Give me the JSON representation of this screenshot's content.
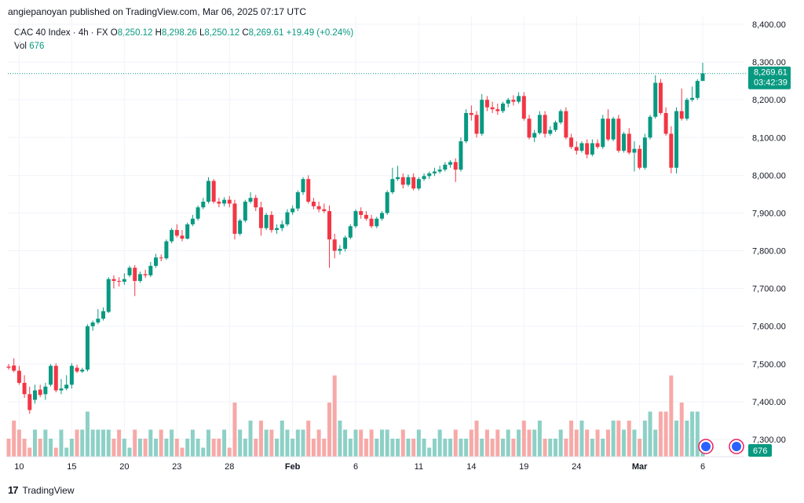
{
  "header": {
    "text": "angiepanoyan published on TradingView.com, Mar 06, 2025 07:17 UTC"
  },
  "legend": {
    "symbol": "CAC 40 Index · 4h · FX",
    "o_label": "O",
    "o": "8,250.12",
    "h_label": "H",
    "h": "8,298.26",
    "l_label": "L",
    "l": "8,250.12",
    "c_label": "C",
    "c": "8,269.61",
    "change": "+19.49 (+0.24%)",
    "vol_label": "Vol",
    "vol": "676"
  },
  "footer": {
    "brand": "TradingView",
    "logo": "17"
  },
  "colors": {
    "up": "#089981",
    "down": "#f23645",
    "vol_up": "#8dd0c6",
    "vol_down": "#f7a9a7",
    "grid": "#f0f3fa"
  },
  "chart_data": {
    "type": "candlestick",
    "y_ticks": [
      "8,400.00",
      "8,300.00",
      "8,200.00",
      "8,100.00",
      "8,000.00",
      "7,900.00",
      "7,800.00",
      "7,700.00",
      "7,600.00",
      "7,500.00",
      "7,400.00",
      "7,300.00"
    ],
    "y_range": [
      7275,
      8425
    ],
    "x_ticks": [
      "10",
      "15",
      "20",
      "23",
      "28",
      "Feb",
      "6",
      "11",
      "14",
      "19",
      "24",
      "Mar",
      "6"
    ],
    "last_price": "8,269.61",
    "countdown": "03:42:39",
    "vol_label": "676",
    "candles": [
      {
        "o": 7493,
        "h": 7500,
        "l": 7485,
        "c": 7490,
        "v": 2
      },
      {
        "o": 7496,
        "h": 7515,
        "l": 7478,
        "c": 7482,
        "v": 4
      },
      {
        "o": 7482,
        "h": 7495,
        "l": 7445,
        "c": 7450,
        "v": 3
      },
      {
        "o": 7450,
        "h": 7470,
        "l": 7410,
        "c": 7420,
        "v": 2
      },
      {
        "o": 7420,
        "h": 7440,
        "l": 7368,
        "c": 7378,
        "v": 1
      },
      {
        "o": 7405,
        "h": 7445,
        "l": 7395,
        "c": 7430,
        "v": 3
      },
      {
        "o": 7432,
        "h": 7445,
        "l": 7412,
        "c": 7418,
        "v": 2
      },
      {
        "o": 7420,
        "h": 7450,
        "l": 7405,
        "c": 7440,
        "v": 3
      },
      {
        "o": 7445,
        "h": 7500,
        "l": 7440,
        "c": 7495,
        "v": 2
      },
      {
        "o": 7495,
        "h": 7502,
        "l": 7425,
        "c": 7430,
        "v": 1
      },
      {
        "o": 7430,
        "h": 7460,
        "l": 7420,
        "c": 7435,
        "v": 3
      },
      {
        "o": 7435,
        "h": 7470,
        "l": 7430,
        "c": 7445,
        "v": 1
      },
      {
        "o": 7445,
        "h": 7502,
        "l": 7435,
        "c": 7495,
        "v": 2
      },
      {
        "o": 7490,
        "h": 7498,
        "l": 7476,
        "c": 7480,
        "v": 3
      },
      {
        "o": 7480,
        "h": 7490,
        "l": 7476,
        "c": 7485,
        "v": 3
      },
      {
        "o": 7485,
        "h": 7605,
        "l": 7480,
        "c": 7600,
        "v": 5
      },
      {
        "o": 7600,
        "h": 7615,
        "l": 7588,
        "c": 7610,
        "v": 3
      },
      {
        "o": 7610,
        "h": 7645,
        "l": 7605,
        "c": 7620,
        "v": 3
      },
      {
        "o": 7620,
        "h": 7650,
        "l": 7615,
        "c": 7640,
        "v": 3
      },
      {
        "o": 7638,
        "h": 7730,
        "l": 7635,
        "c": 7725,
        "v": 3
      },
      {
        "o": 7725,
        "h": 7735,
        "l": 7700,
        "c": 7720,
        "v": 2
      },
      {
        "o": 7720,
        "h": 7730,
        "l": 7705,
        "c": 7718,
        "v": 3
      },
      {
        "o": 7718,
        "h": 7740,
        "l": 7710,
        "c": 7725,
        "v": 2
      },
      {
        "o": 7735,
        "h": 7760,
        "l": 7730,
        "c": 7755,
        "v": 1
      },
      {
        "o": 7755,
        "h": 7762,
        "l": 7680,
        "c": 7720,
        "v": 3
      },
      {
        "o": 7720,
        "h": 7745,
        "l": 7715,
        "c": 7738,
        "v": 2
      },
      {
        "o": 7738,
        "h": 7750,
        "l": 7728,
        "c": 7735,
        "v": 2
      },
      {
        "o": 7735,
        "h": 7770,
        "l": 7730,
        "c": 7760,
        "v": 3
      },
      {
        "o": 7760,
        "h": 7792,
        "l": 7755,
        "c": 7782,
        "v": 2
      },
      {
        "o": 7782,
        "h": 7790,
        "l": 7772,
        "c": 7780,
        "v": 3
      },
      {
        "o": 7780,
        "h": 7830,
        "l": 7776,
        "c": 7825,
        "v": 2
      },
      {
        "o": 7825,
        "h": 7860,
        "l": 7820,
        "c": 7855,
        "v": 3
      },
      {
        "o": 7855,
        "h": 7870,
        "l": 7835,
        "c": 7840,
        "v": 2
      },
      {
        "o": 7840,
        "h": 7855,
        "l": 7825,
        "c": 7832,
        "v": 1
      },
      {
        "o": 7832,
        "h": 7875,
        "l": 7830,
        "c": 7870,
        "v": 2
      },
      {
        "o": 7870,
        "h": 7895,
        "l": 7865,
        "c": 7885,
        "v": 3
      },
      {
        "o": 7885,
        "h": 7920,
        "l": 7880,
        "c": 7915,
        "v": 2
      },
      {
        "o": 7915,
        "h": 7940,
        "l": 7910,
        "c": 7930,
        "v": 1
      },
      {
        "o": 7930,
        "h": 7995,
        "l": 7925,
        "c": 7985,
        "v": 3
      },
      {
        "o": 7985,
        "h": 7990,
        "l": 7925,
        "c": 7930,
        "v": 2
      },
      {
        "o": 7930,
        "h": 7940,
        "l": 7915,
        "c": 7925,
        "v": 2
      },
      {
        "o": 7925,
        "h": 7942,
        "l": 7918,
        "c": 7935,
        "v": 3
      },
      {
        "o": 7935,
        "h": 7945,
        "l": 7915,
        "c": 7925,
        "v": 1
      },
      {
        "o": 7925,
        "h": 7935,
        "l": 7830,
        "c": 7845,
        "v": 6
      },
      {
        "o": 7845,
        "h": 7885,
        "l": 7840,
        "c": 7880,
        "v": 3
      },
      {
        "o": 7880,
        "h": 7935,
        "l": 7875,
        "c": 7930,
        "v": 2
      },
      {
        "o": 7930,
        "h": 7955,
        "l": 7925,
        "c": 7940,
        "v": 4
      },
      {
        "o": 7940,
        "h": 7948,
        "l": 7905,
        "c": 7915,
        "v": 2
      },
      {
        "o": 7915,
        "h": 7930,
        "l": 7840,
        "c": 7860,
        "v": 4
      },
      {
        "o": 7860,
        "h": 7900,
        "l": 7855,
        "c": 7895,
        "v": 3
      },
      {
        "o": 7895,
        "h": 7905,
        "l": 7848,
        "c": 7855,
        "v": 3
      },
      {
        "o": 7855,
        "h": 7870,
        "l": 7845,
        "c": 7860,
        "v": 2
      },
      {
        "o": 7860,
        "h": 7880,
        "l": 7852,
        "c": 7870,
        "v": 4
      },
      {
        "o": 7870,
        "h": 7910,
        "l": 7865,
        "c": 7902,
        "v": 3
      },
      {
        "o": 7902,
        "h": 7920,
        "l": 7895,
        "c": 7912,
        "v": 2
      },
      {
        "o": 7912,
        "h": 7960,
        "l": 7905,
        "c": 7955,
        "v": 3
      },
      {
        "o": 7955,
        "h": 7995,
        "l": 7948,
        "c": 7990,
        "v": 3
      },
      {
        "o": 7990,
        "h": 8000,
        "l": 7925,
        "c": 7930,
        "v": 4
      },
      {
        "o": 7930,
        "h": 7940,
        "l": 7910,
        "c": 7918,
        "v": 2
      },
      {
        "o": 7918,
        "h": 7930,
        "l": 7902,
        "c": 7910,
        "v": 3
      },
      {
        "o": 7910,
        "h": 7925,
        "l": 7900,
        "c": 7905,
        "v": 2
      },
      {
        "o": 7905,
        "h": 7920,
        "l": 7755,
        "c": 7830,
        "v": 6
      },
      {
        "o": 7830,
        "h": 7845,
        "l": 7780,
        "c": 7800,
        "v": 9
      },
      {
        "o": 7800,
        "h": 7815,
        "l": 7790,
        "c": 7805,
        "v": 4
      },
      {
        "o": 7805,
        "h": 7840,
        "l": 7798,
        "c": 7835,
        "v": 3
      },
      {
        "o": 7835,
        "h": 7870,
        "l": 7830,
        "c": 7865,
        "v": 2
      },
      {
        "o": 7865,
        "h": 7910,
        "l": 7860,
        "c": 7905,
        "v": 3
      },
      {
        "o": 7905,
        "h": 7915,
        "l": 7885,
        "c": 7895,
        "v": 3
      },
      {
        "o": 7895,
        "h": 7905,
        "l": 7880,
        "c": 7885,
        "v": 2
      },
      {
        "o": 7885,
        "h": 7895,
        "l": 7860,
        "c": 7865,
        "v": 3
      },
      {
        "o": 7865,
        "h": 7890,
        "l": 7860,
        "c": 7885,
        "v": 2
      },
      {
        "o": 7885,
        "h": 7905,
        "l": 7880,
        "c": 7900,
        "v": 3
      },
      {
        "o": 7900,
        "h": 7960,
        "l": 7895,
        "c": 7955,
        "v": 3
      },
      {
        "o": 7955,
        "h": 8020,
        "l": 7950,
        "c": 7990,
        "v": 2
      },
      {
        "o": 7990,
        "h": 8025,
        "l": 7985,
        "c": 7995,
        "v": 2
      },
      {
        "o": 7995,
        "h": 8005,
        "l": 7965,
        "c": 7975,
        "v": 3
      },
      {
        "o": 7975,
        "h": 8002,
        "l": 7970,
        "c": 7995,
        "v": 2
      },
      {
        "o": 7995,
        "h": 8005,
        "l": 7960,
        "c": 7965,
        "v": 2
      },
      {
        "o": 7965,
        "h": 7995,
        "l": 7960,
        "c": 7990,
        "v": 3
      },
      {
        "o": 7990,
        "h": 8005,
        "l": 7985,
        "c": 7998,
        "v": 2
      },
      {
        "o": 7998,
        "h": 8010,
        "l": 7990,
        "c": 8005,
        "v": 1
      },
      {
        "o": 8005,
        "h": 8020,
        "l": 7998,
        "c": 8010,
        "v": 2
      },
      {
        "o": 8010,
        "h": 8025,
        "l": 8005,
        "c": 8015,
        "v": 3
      },
      {
        "o": 8015,
        "h": 8035,
        "l": 8010,
        "c": 8028,
        "v": 2
      },
      {
        "o": 8028,
        "h": 8040,
        "l": 8020,
        "c": 8035,
        "v": 2
      },
      {
        "o": 8035,
        "h": 8045,
        "l": 7982,
        "c": 8015,
        "v": 3
      },
      {
        "o": 8015,
        "h": 8100,
        "l": 8010,
        "c": 8090,
        "v": 2
      },
      {
        "o": 8090,
        "h": 8175,
        "l": 8085,
        "c": 8165,
        "v": 2
      },
      {
        "o": 8165,
        "h": 8185,
        "l": 8145,
        "c": 8160,
        "v": 3
      },
      {
        "o": 8160,
        "h": 8170,
        "l": 8100,
        "c": 8110,
        "v": 4
      },
      {
        "o": 8110,
        "h": 8215,
        "l": 8105,
        "c": 8200,
        "v": 2
      },
      {
        "o": 8200,
        "h": 8210,
        "l": 8170,
        "c": 8180,
        "v": 3
      },
      {
        "o": 8180,
        "h": 8195,
        "l": 8165,
        "c": 8175,
        "v": 2
      },
      {
        "o": 8175,
        "h": 8190,
        "l": 8160,
        "c": 8170,
        "v": 3
      },
      {
        "o": 8170,
        "h": 8195,
        "l": 8165,
        "c": 8190,
        "v": 2
      },
      {
        "o": 8190,
        "h": 8205,
        "l": 8180,
        "c": 8200,
        "v": 3
      },
      {
        "o": 8200,
        "h": 8212,
        "l": 8185,
        "c": 8195,
        "v": 2
      },
      {
        "o": 8195,
        "h": 8220,
        "l": 8190,
        "c": 8210,
        "v": 3
      },
      {
        "o": 8210,
        "h": 8220,
        "l": 8145,
        "c": 8150,
        "v": 4
      },
      {
        "o": 8150,
        "h": 8160,
        "l": 8095,
        "c": 8100,
        "v": 3
      },
      {
        "o": 8100,
        "h": 8120,
        "l": 8088,
        "c": 8112,
        "v": 3
      },
      {
        "o": 8112,
        "h": 8170,
        "l": 8108,
        "c": 8160,
        "v": 4
      },
      {
        "o": 8160,
        "h": 8170,
        "l": 8100,
        "c": 8110,
        "v": 2
      },
      {
        "o": 8110,
        "h": 8130,
        "l": 8105,
        "c": 8120,
        "v": 2
      },
      {
        "o": 8120,
        "h": 8145,
        "l": 8115,
        "c": 8140,
        "v": 2
      },
      {
        "o": 8140,
        "h": 8175,
        "l": 8135,
        "c": 8170,
        "v": 3
      },
      {
        "o": 8170,
        "h": 8180,
        "l": 8095,
        "c": 8100,
        "v": 2
      },
      {
        "o": 8100,
        "h": 8110,
        "l": 8070,
        "c": 8075,
        "v": 4
      },
      {
        "o": 8075,
        "h": 8090,
        "l": 8055,
        "c": 8065,
        "v": 3
      },
      {
        "o": 8065,
        "h": 8090,
        "l": 8060,
        "c": 8085,
        "v": 4
      },
      {
        "o": 8085,
        "h": 8095,
        "l": 8045,
        "c": 8055,
        "v": 3
      },
      {
        "o": 8055,
        "h": 8095,
        "l": 8050,
        "c": 8085,
        "v": 2
      },
      {
        "o": 8085,
        "h": 8095,
        "l": 8070,
        "c": 8075,
        "v": 3
      },
      {
        "o": 8075,
        "h": 8160,
        "l": 8070,
        "c": 8150,
        "v": 2
      },
      {
        "o": 8150,
        "h": 8175,
        "l": 8090,
        "c": 8095,
        "v": 3
      },
      {
        "o": 8095,
        "h": 8155,
        "l": 8090,
        "c": 8150,
        "v": 4
      },
      {
        "o": 8150,
        "h": 8160,
        "l": 8060,
        "c": 8065,
        "v": 4
      },
      {
        "o": 8065,
        "h": 8115,
        "l": 8060,
        "c": 8110,
        "v": 3
      },
      {
        "o": 8110,
        "h": 8125,
        "l": 8055,
        "c": 8060,
        "v": 4
      },
      {
        "o": 8060,
        "h": 8090,
        "l": 8010,
        "c": 8070,
        "v": 3
      },
      {
        "o": 8070,
        "h": 8080,
        "l": 8015,
        "c": 8020,
        "v": 2
      },
      {
        "o": 8020,
        "h": 8110,
        "l": 8015,
        "c": 8100,
        "v": 4
      },
      {
        "o": 8100,
        "h": 8160,
        "l": 8095,
        "c": 8155,
        "v": 5
      },
      {
        "o": 8155,
        "h": 8265,
        "l": 8150,
        "c": 8245,
        "v": 3
      },
      {
        "o": 8245,
        "h": 8255,
        "l": 8160,
        "c": 8165,
        "v": 5
      },
      {
        "o": 8165,
        "h": 8180,
        "l": 8105,
        "c": 8110,
        "v": 5
      },
      {
        "o": 8110,
        "h": 8130,
        "l": 8005,
        "c": 8020,
        "v": 9
      },
      {
        "o": 8020,
        "h": 8180,
        "l": 8005,
        "c": 8170,
        "v": 4
      },
      {
        "o": 8170,
        "h": 8230,
        "l": 8145,
        "c": 8150,
        "v": 6
      },
      {
        "o": 8150,
        "h": 8205,
        "l": 8145,
        "c": 8200,
        "v": 4
      },
      {
        "o": 8200,
        "h": 8235,
        "l": 8195,
        "c": 8205,
        "v": 5
      },
      {
        "o": 8205,
        "h": 8255,
        "l": 8200,
        "c": 8250,
        "v": 5
      },
      {
        "o": 8250,
        "h": 8298,
        "l": 8250,
        "c": 8270,
        "v": 1
      }
    ]
  }
}
